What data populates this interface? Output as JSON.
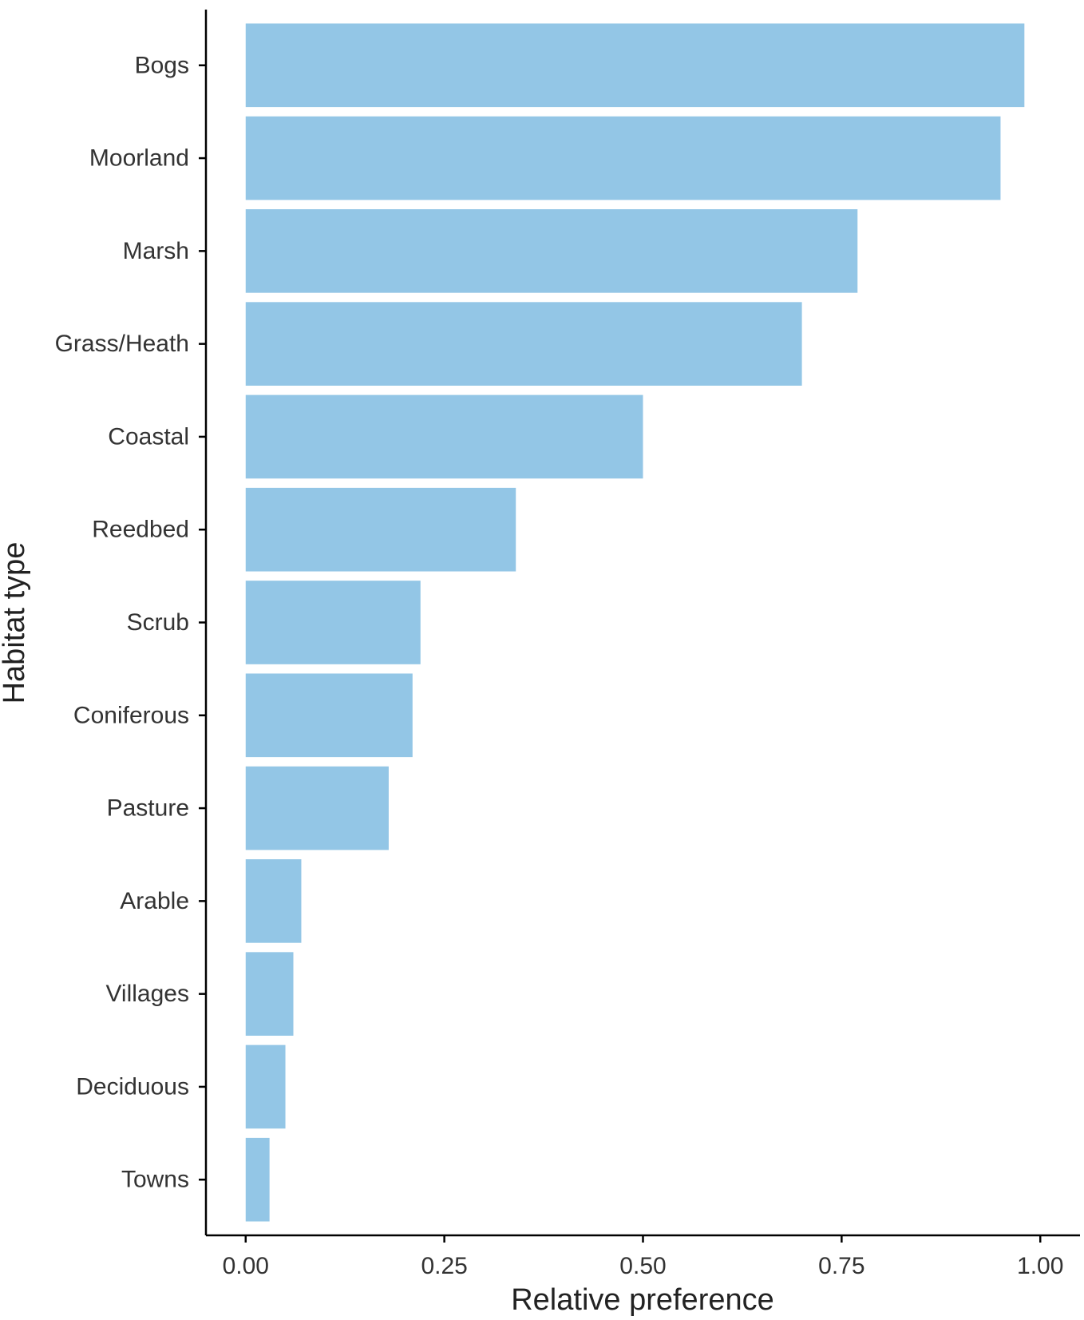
{
  "chart_data": {
    "type": "bar",
    "orientation": "horizontal",
    "categories": [
      "Bogs",
      "Moorland",
      "Marsh",
      "Grass/Heath",
      "Coastal",
      "Reedbed",
      "Scrub",
      "Coniferous",
      "Pasture",
      "Arable",
      "Villages",
      "Deciduous",
      "Towns"
    ],
    "values": [
      0.98,
      0.95,
      0.77,
      0.7,
      0.5,
      0.34,
      0.22,
      0.21,
      0.18,
      0.07,
      0.06,
      0.05,
      0.03
    ],
    "title": "",
    "xlabel": "Relative preference",
    "ylabel": "Habitat type",
    "xlim": [
      -0.05,
      1.05
    ],
    "xticks": [
      "0.00",
      "0.25",
      "0.50",
      "0.75",
      "1.00"
    ],
    "xtick_values": [
      0,
      0.25,
      0.5,
      0.75,
      1.0
    ],
    "bar_color": "#93c6e6",
    "grid": false,
    "legend": "none"
  }
}
